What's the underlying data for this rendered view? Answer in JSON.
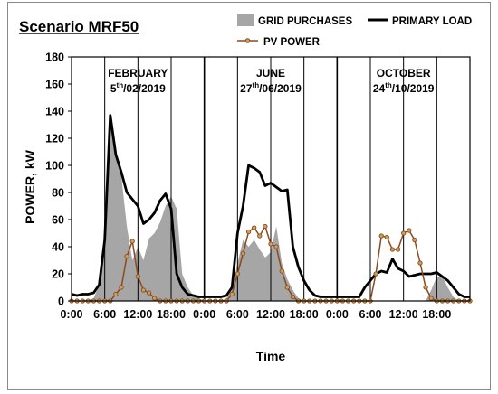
{
  "chart_data": {
    "type": "area",
    "title": "Scenario MRF50",
    "xlabel": "Time",
    "ylabel": "POWER, kW",
    "ylim": [
      0,
      180
    ],
    "yticks": [
      "0",
      "20",
      "40",
      "60",
      "80",
      "100",
      "120",
      "140",
      "160",
      "180"
    ],
    "xticks": [
      "0:00",
      "6:00",
      "12:00",
      "18:00",
      "0:00",
      "6:00",
      "12:00",
      "18:00",
      "0:00",
      "6:00",
      "12:00",
      "18:00"
    ],
    "grid": "vertical-6h",
    "hours_per_day": 24,
    "days": [
      {
        "name": "FEBRUARY",
        "date_prefix": "5",
        "date_sup": "th",
        "date_suffix": "/02/2019"
      },
      {
        "name": "JUNE",
        "date_prefix": "27",
        "date_sup": "th",
        "date_suffix": "/06/2019"
      },
      {
        "name": "OCTOBER",
        "date_prefix": "24",
        "date_sup": "th",
        "date_suffix": "/10/2019"
      }
    ],
    "legend_placement": "top",
    "series": [
      {
        "name": "GRID PURCHASES",
        "kind": "area",
        "color": "#a6a6a6",
        "x": [
          0,
          3,
          4,
          5,
          6,
          7,
          8,
          9,
          10,
          11,
          12,
          13,
          14,
          15,
          16,
          17,
          18,
          19,
          20,
          21,
          22,
          23,
          24,
          27,
          28,
          29,
          30,
          31,
          32,
          33,
          34,
          35,
          36,
          37,
          38,
          39,
          40,
          41,
          42,
          43,
          44,
          45,
          46,
          47,
          48,
          52,
          53,
          54,
          55,
          56,
          57,
          58,
          59,
          60,
          61,
          62,
          63,
          64,
          65,
          66,
          67,
          68,
          69,
          70,
          71,
          72
        ],
        "values": [
          0,
          0,
          2,
          12,
          45,
          132,
          108,
          92,
          55,
          30,
          40,
          30,
          46,
          50,
          58,
          70,
          77,
          68,
          20,
          10,
          4,
          2,
          0,
          0,
          2,
          8,
          28,
          45,
          40,
          45,
          38,
          32,
          36,
          55,
          28,
          16,
          8,
          2,
          0,
          0,
          0,
          0,
          0,
          0,
          0,
          0,
          0,
          0,
          0,
          0,
          0,
          0,
          0,
          0,
          0,
          0,
          0,
          0,
          8,
          18,
          18,
          10,
          3,
          0,
          0,
          0
        ]
      },
      {
        "name": "PRIMARY LOAD",
        "kind": "line",
        "color": "#000000",
        "x": [
          0,
          1,
          2,
          3,
          4,
          5,
          6,
          7,
          8,
          9,
          10,
          11,
          12,
          13,
          14,
          15,
          16,
          17,
          18,
          19,
          20,
          21,
          22,
          23,
          24,
          25,
          26,
          27,
          28,
          29,
          30,
          31,
          32,
          33,
          34,
          35,
          36,
          37,
          38,
          39,
          40,
          41,
          42,
          43,
          44,
          45,
          46,
          47,
          48,
          49,
          50,
          51,
          52,
          53,
          54,
          55,
          56,
          57,
          58,
          59,
          60,
          61,
          62,
          63,
          64,
          65,
          66,
          67,
          68,
          69,
          70,
          71,
          72
        ],
        "values": [
          5,
          4,
          5,
          5,
          6,
          12,
          45,
          137,
          108,
          95,
          80,
          75,
          70,
          57,
          60,
          65,
          74,
          79,
          68,
          20,
          10,
          5,
          4,
          3,
          3,
          3,
          3,
          3,
          4,
          10,
          50,
          70,
          100,
          98,
          95,
          85,
          87,
          84,
          81,
          82,
          40,
          25,
          15,
          8,
          4,
          3,
          3,
          3,
          3,
          3,
          3,
          3,
          3,
          10,
          15,
          20,
          22,
          21,
          31,
          24,
          22,
          18,
          19,
          20,
          20,
          20,
          21,
          18,
          15,
          10,
          5,
          3,
          3
        ]
      },
      {
        "name": "PV POWER",
        "kind": "line-marker",
        "color": "#8b4a1e",
        "x": [
          0,
          1,
          2,
          3,
          4,
          5,
          6,
          7,
          8,
          9,
          10,
          11,
          12,
          13,
          14,
          15,
          16,
          17,
          18,
          19,
          20,
          21,
          22,
          23,
          24,
          25,
          26,
          27,
          28,
          29,
          30,
          31,
          32,
          33,
          34,
          35,
          36,
          37,
          38,
          39,
          40,
          41,
          42,
          43,
          44,
          45,
          46,
          47,
          48,
          49,
          50,
          51,
          52,
          53,
          54,
          55,
          56,
          57,
          58,
          59,
          60,
          61,
          62,
          63,
          64,
          65,
          66,
          67,
          68,
          69,
          70,
          71,
          72
        ],
        "values": [
          0,
          0,
          0,
          0,
          0,
          0,
          0,
          0,
          5,
          10,
          33,
          44,
          18,
          8,
          6,
          2,
          0,
          0,
          0,
          0,
          0,
          0,
          0,
          0,
          0,
          0,
          0,
          0,
          0,
          5,
          20,
          35,
          51,
          54,
          48,
          55,
          42,
          40,
          22,
          10,
          3,
          0,
          0,
          0,
          0,
          0,
          0,
          0,
          0,
          0,
          0,
          0,
          0,
          0,
          0,
          20,
          48,
          47,
          38,
          38,
          50,
          52,
          45,
          28,
          10,
          2,
          0,
          0,
          0,
          0,
          0,
          0,
          0
        ]
      }
    ]
  }
}
